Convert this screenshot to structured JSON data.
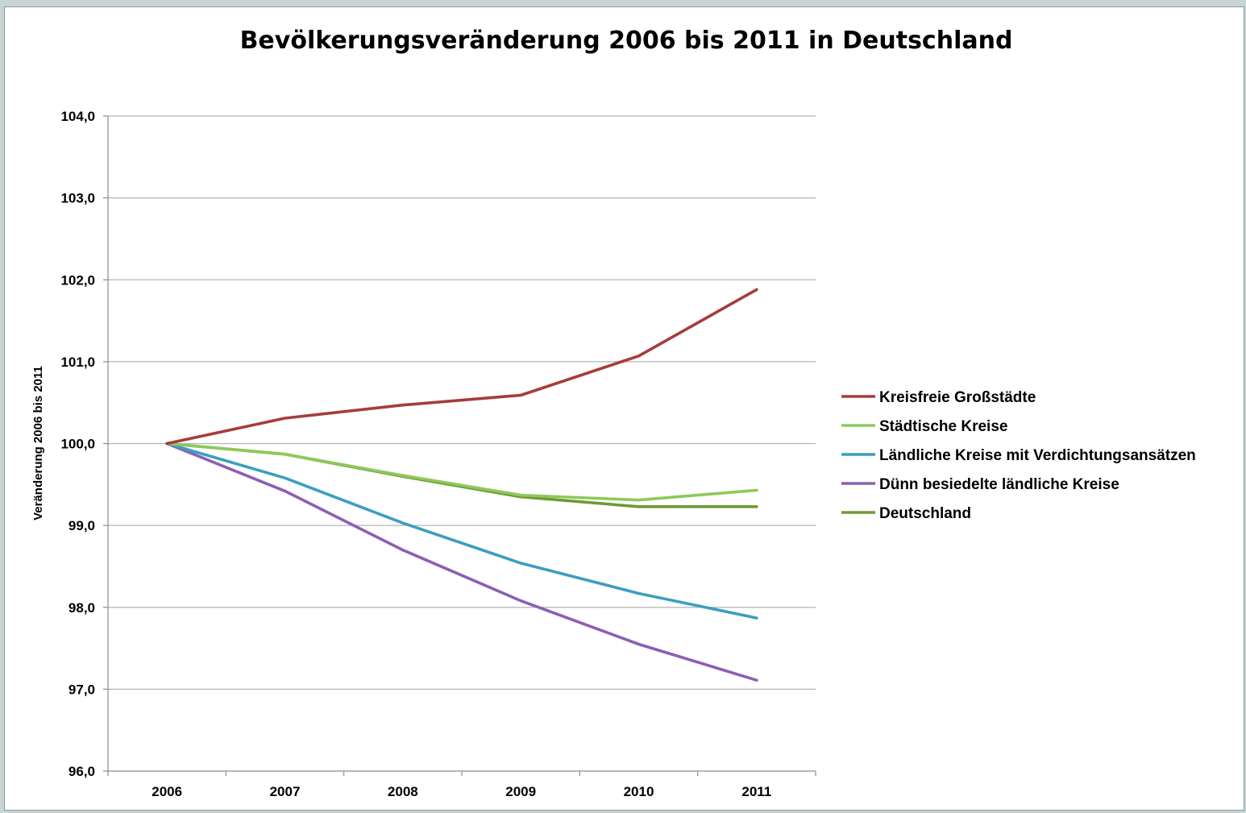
{
  "chart_data": {
    "type": "line",
    "title": "Bevölkerungsveränderung 2006 bis 2011 in Deutschland",
    "xlabel": "",
    "ylabel": "Veränderung 2006 bis 2011",
    "x": [
      "2006",
      "2007",
      "2008",
      "2009",
      "2010",
      "2011"
    ],
    "ylim": [
      96.0,
      104.0
    ],
    "yticks": [
      "96,0",
      "97,0",
      "98,0",
      "99,0",
      "100,0",
      "101,0",
      "102,0",
      "103,0",
      "104,0"
    ],
    "grid": true,
    "legend_position": "right",
    "series": [
      {
        "name": "Kreisfreie Großstädte",
        "color": "#a83b3b",
        "values": [
          100.0,
          100.31,
          100.47,
          100.59,
          101.07,
          101.88
        ]
      },
      {
        "name": "Städtische Kreise",
        "color": "#8dc95a",
        "values": [
          100.0,
          99.87,
          99.61,
          99.37,
          99.31,
          99.43
        ]
      },
      {
        "name": "Ländliche Kreise mit Verdichtungsansätzen",
        "color": "#3c9ec0",
        "values": [
          100.0,
          99.58,
          99.03,
          98.54,
          98.17,
          97.87
        ]
      },
      {
        "name": "Dünn besiedelte ländliche Kreise",
        "color": "#8b5fb4",
        "values": [
          100.0,
          99.42,
          98.7,
          98.08,
          97.55,
          97.11
        ]
      },
      {
        "name": "Deutschland",
        "color": "#6f9a35",
        "values": [
          100.0,
          99.87,
          99.6,
          99.35,
          99.23,
          99.23
        ]
      }
    ]
  }
}
